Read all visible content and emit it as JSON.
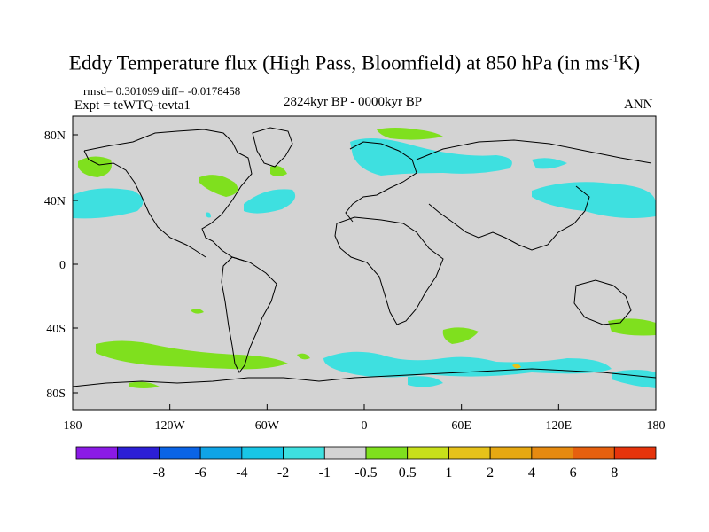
{
  "header": {
    "title_main": "Eddy Temperature flux (High Pass, Bloomfield) at 850 hPa (in ms",
    "title_sup": "-1",
    "title_end": "K)",
    "stats": "rmsd= 0.301099 diff= -0.0178458",
    "expt": "Expt = teWTQ-tevta1",
    "period": "2824kyr BP - 0000kyr BP",
    "season": "ANN"
  },
  "axes": {
    "x_ticks": [
      "180",
      "120W",
      "60W",
      "0",
      "60E",
      "120E",
      "180"
    ],
    "y_ticks": [
      "80N",
      "40N",
      "0",
      "40S",
      "80S"
    ]
  },
  "colorbar": {
    "colors": [
      "#8b1ae6",
      "#2c1fd6",
      "#0a64e6",
      "#0fa4e6",
      "#18c6e6",
      "#3ee0e0",
      "#d3d3d3",
      "#7fe01e",
      "#c8e01a",
      "#e6c21a",
      "#e6a812",
      "#e68a10",
      "#e6600e",
      "#e6340c"
    ],
    "labels": [
      "-8",
      "-6",
      "-4",
      "-2",
      "-1",
      "-0.5",
      "0.5",
      "1",
      "2",
      "4",
      "6",
      "8"
    ]
  },
  "fill_colors": {
    "land_bg": "#d3d3d3",
    "cyan": "#3ee0e0",
    "green": "#7fe01e",
    "yellow": "#e6c21a"
  }
}
